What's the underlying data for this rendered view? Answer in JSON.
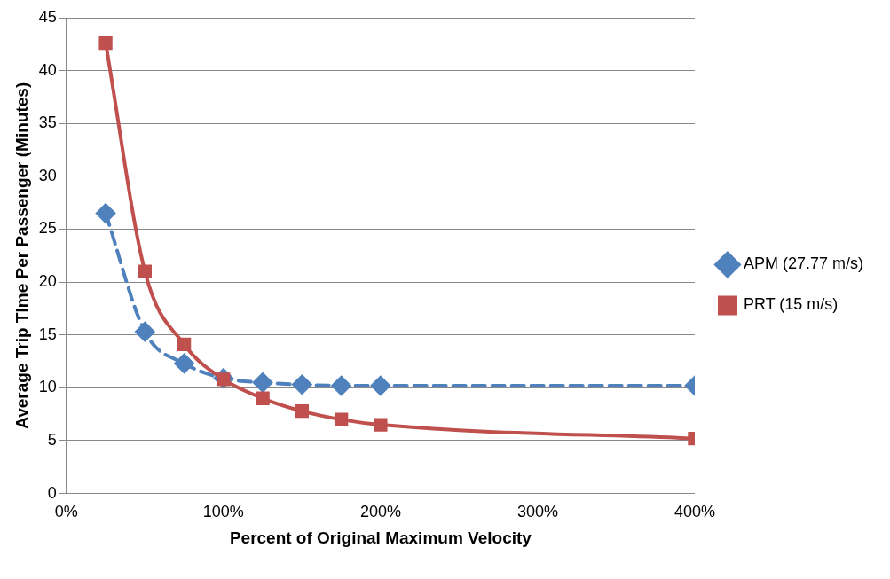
{
  "chart_data": {
    "type": "line",
    "xlabel": "Percent of Original Maximum Velocity",
    "ylabel": "Average Trip TIme Per Passenger (Minutes)",
    "x": [
      25,
      50,
      75,
      100,
      125,
      150,
      175,
      200,
      400
    ],
    "series": [
      {
        "name": "APM (27.77 m/s)",
        "color": "#4f81bd",
        "marker": "diamond",
        "line_style": "dashed",
        "values": [
          26.5,
          15.3,
          12.3,
          10.9,
          10.5,
          10.3,
          10.2,
          10.2,
          10.2
        ]
      },
      {
        "name": "PRT (15 m/s)",
        "color": "#c0504d",
        "marker": "square",
        "line_style": "solid",
        "values": [
          42.6,
          21.0,
          14.1,
          10.8,
          9.0,
          7.8,
          7.0,
          6.5,
          5.2
        ]
      }
    ],
    "xlim": [
      0,
      400
    ],
    "xticks": [
      {
        "value": 0,
        "label": "0%"
      },
      {
        "value": 100,
        "label": "100%"
      },
      {
        "value": 200,
        "label": "200%"
      },
      {
        "value": 300,
        "label": "300%"
      },
      {
        "value": 400,
        "label": "400%"
      }
    ],
    "ylim": [
      0,
      45
    ],
    "yticks": [
      0,
      5,
      10,
      15,
      20,
      25,
      30,
      35,
      40,
      45
    ],
    "grid": "y",
    "legend": "right"
  }
}
